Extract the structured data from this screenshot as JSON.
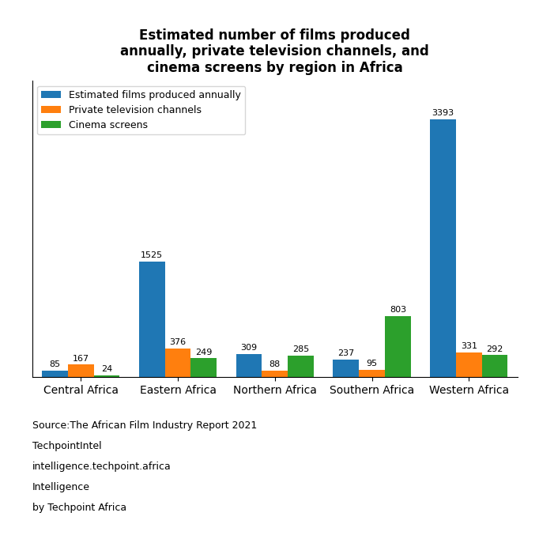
{
  "chart_data": {
    "type": "bar",
    "title": "Estimated number of films produced\nannually, private television channels, and\ncinema screens by region in Africa",
    "categories": [
      "Central Africa",
      "Eastern Africa",
      "Northern Africa",
      "Southern Africa",
      "Western Africa"
    ],
    "series": [
      {
        "name": "Estimated films produced annually",
        "values": [
          85,
          1525,
          309,
          237,
          3393
        ]
      },
      {
        "name": "Private television channels",
        "values": [
          167,
          376,
          88,
          95,
          331
        ]
      },
      {
        "name": "Cinema screens",
        "values": [
          24,
          249,
          285,
          803,
          292
        ]
      }
    ],
    "ylim": [
      0,
      3900
    ],
    "yticks": [],
    "tick_labels": "x",
    "data_labels": true,
    "legend": "upper left",
    "annotations": [
      "Source:The African Film Industry Report 2021",
      "TechpointIntel",
      "intelligence.techpoint.africa",
      "Intelligence",
      "by Techpoint Africa"
    ]
  }
}
